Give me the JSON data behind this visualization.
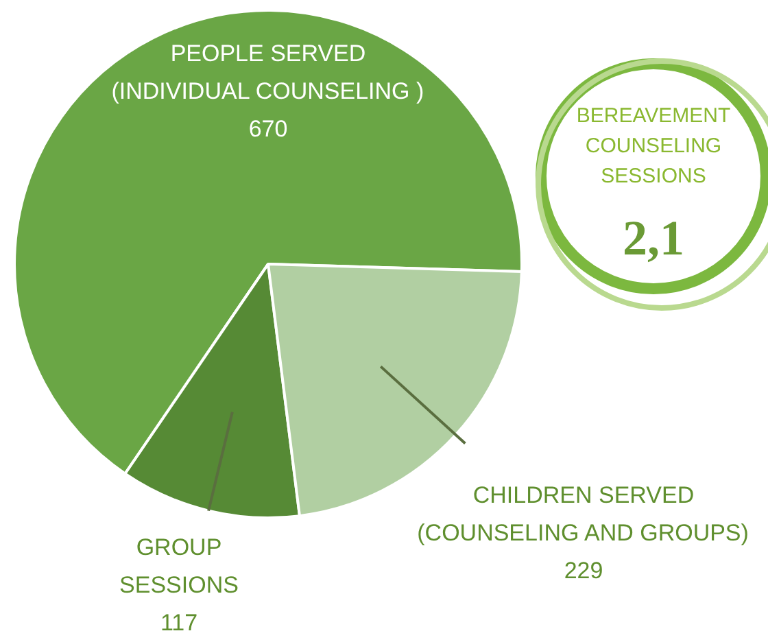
{
  "chart_data": {
    "type": "pie",
    "categories": [
      "PEOPLE SERVED\n(INDIVIDUAL COUNSELING )",
      "GROUP\nSESSIONS",
      "CHILDREN SERVED\n(COUNSELING AND GROUPS)"
    ],
    "values": [
      670,
      117,
      229
    ],
    "colors": [
      "#6aa645",
      "#568a35",
      "#b1cfa2"
    ],
    "data_labels": true,
    "annotations": [
      "BEREAVEMENT\nCOUNSELING\nSESSIONS",
      "2,1"
    ]
  }
}
